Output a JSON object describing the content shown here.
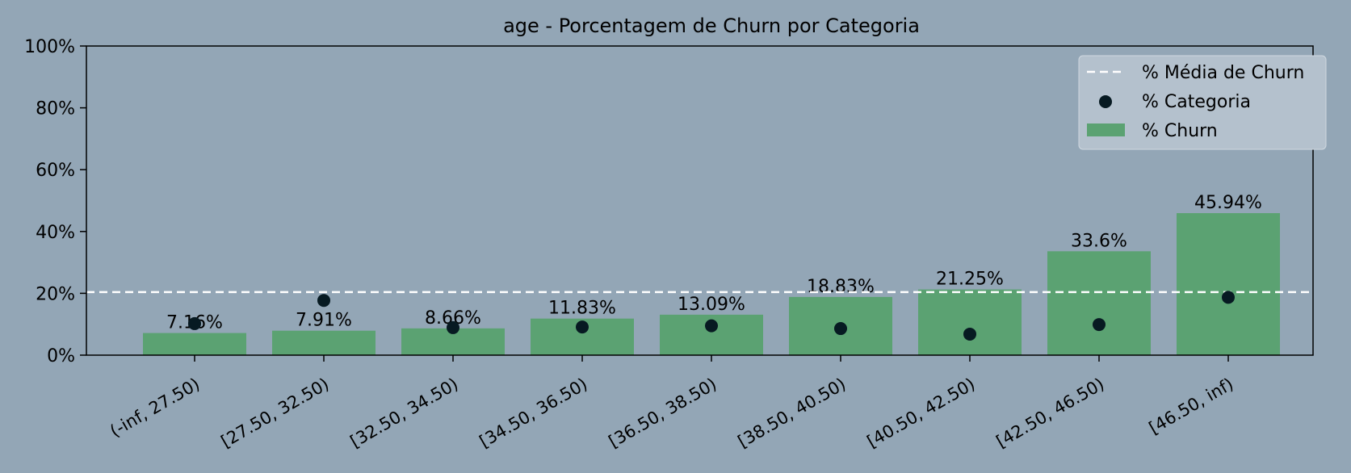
{
  "chart_data": {
    "type": "bar",
    "title": "age - Porcentagem de Churn por Categoria",
    "xlabel": "",
    "ylabel": "",
    "ylim": [
      0,
      100
    ],
    "yticks": [
      "0%",
      "20%",
      "40%",
      "60%",
      "80%",
      "100%"
    ],
    "categories": [
      "(-inf, 27.50)",
      "[27.50, 32.50)",
      "[32.50, 34.50)",
      "[34.50, 36.50)",
      "[36.50, 38.50)",
      "[38.50, 40.50)",
      "[40.50, 42.50)",
      "[42.50, 46.50)",
      "[46.50, inf)"
    ],
    "series": [
      {
        "name": "% Churn",
        "values": [
          7.16,
          7.91,
          8.66,
          11.83,
          13.09,
          18.83,
          21.25,
          33.6,
          45.94
        ],
        "labels": [
          "7.16%",
          "7.91%",
          "8.66%",
          "11.83%",
          "13.09%",
          "18.83%",
          "21.25%",
          "33.6%",
          "45.94%"
        ],
        "color": "#5ba272"
      },
      {
        "name": "% Categoria",
        "values": [
          10.2,
          17.7,
          8.9,
          9.1,
          9.5,
          8.6,
          6.8,
          9.9,
          18.7
        ],
        "color": "#071a22"
      }
    ],
    "reference_line": {
      "name": "% Média de Churn",
      "value": 20.4,
      "color": "#ffffff"
    },
    "legend_position": "top-right",
    "grid": false,
    "colors": {
      "background": "#93a6b6",
      "legend_bg": "#b4c1cd"
    }
  }
}
